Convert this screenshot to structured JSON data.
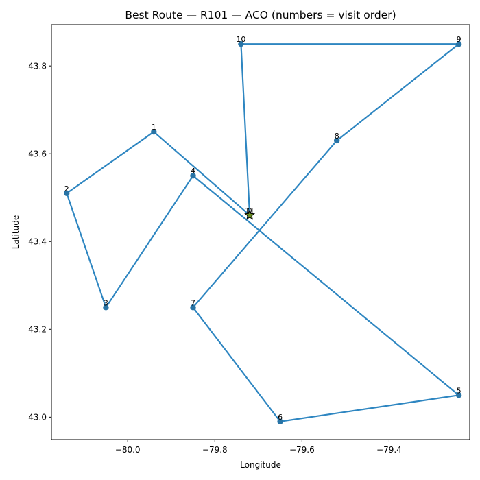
{
  "chart_data": {
    "type": "line",
    "title": "Best Route — R101 — ACO (numbers = visit order)",
    "xlabel": "Longitude",
    "ylabel": "Latitude",
    "xlim": [
      -80.175,
      -79.215
    ],
    "ylim": [
      42.949,
      43.894
    ],
    "xticks": [
      -80.0,
      -79.8,
      -79.6,
      -79.4
    ],
    "xtick_labels": [
      "−80.0",
      "−79.8",
      "−79.6",
      "−79.4"
    ],
    "yticks": [
      43.0,
      43.2,
      43.4,
      43.6,
      43.8
    ],
    "ytick_labels": [
      "43.0",
      "43.2",
      "43.4",
      "43.6",
      "43.8"
    ],
    "grid": false,
    "line_color": "#2e86c1",
    "marker_color": "#2874a6",
    "depot": {
      "x": -79.72,
      "y": 43.46,
      "marker": "star",
      "color": "#6b8e23"
    },
    "points": [
      {
        "label": "0",
        "x": -79.72,
        "y": 43.46
      },
      {
        "label": "1",
        "x": -79.94,
        "y": 43.65
      },
      {
        "label": "2",
        "x": -80.14,
        "y": 43.51
      },
      {
        "label": "3",
        "x": -80.05,
        "y": 43.25
      },
      {
        "label": "4",
        "x": -79.85,
        "y": 43.55
      },
      {
        "label": "5",
        "x": -79.24,
        "y": 43.05
      },
      {
        "label": "6",
        "x": -79.65,
        "y": 42.99
      },
      {
        "label": "7",
        "x": -79.85,
        "y": 43.25
      },
      {
        "label": "8",
        "x": -79.52,
        "y": 43.63
      },
      {
        "label": "9",
        "x": -79.24,
        "y": 43.85
      },
      {
        "label": "10",
        "x": -79.74,
        "y": 43.85
      },
      {
        "label": "11",
        "x": -79.72,
        "y": 43.46
      }
    ]
  }
}
